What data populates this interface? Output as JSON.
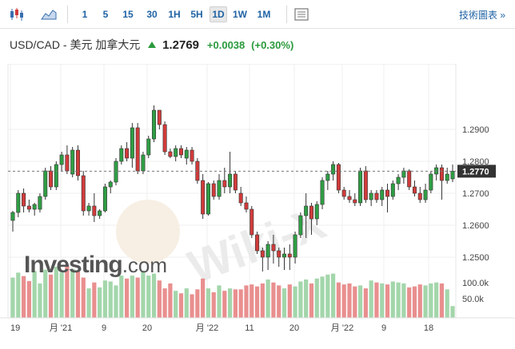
{
  "toolbar": {
    "buttons": [
      "1",
      "5",
      "15",
      "30",
      "1H",
      "5H",
      "1D",
      "1W",
      "1M"
    ],
    "active": "1D",
    "link": "技術圖表 »",
    "icons": [
      "candlestick-icon",
      "area-chart-icon",
      "settings-panel-icon"
    ]
  },
  "header": {
    "pair": "USD/CAD - 美元 加拿大元",
    "price": "1.2769",
    "change": "+0.0038",
    "change_pct": "(+0.30%)",
    "up_color": "#2a9a3c"
  },
  "watermark": {
    "brand": "Investing",
    "suffix": ".com",
    "overlay": "Wiki-X"
  },
  "colors": {
    "up": "#2f9e44",
    "down": "#d13b3b",
    "vol_up": "#a3d6ab",
    "vol_down": "#e98f8f",
    "grid": "#efefef",
    "current": "#333333"
  },
  "chart_data": {
    "type": "candlestick",
    "y_axis": {
      "ticks": [
        "1.2900",
        "1.2800",
        "1.2700",
        "1.2600",
        "1.2500"
      ],
      "min": 1.244,
      "max": 1.3105
    },
    "current_price_label": "1.2770",
    "x_axis": {
      "tick_labels": [
        "19",
        "月 '21",
        "9",
        "20",
        "月 '22",
        "11",
        "20",
        "月 '22",
        "9",
        "18"
      ]
    },
    "volume_axis": {
      "ticks": [
        "100.0k",
        "50.0k"
      ],
      "max": 130
    },
    "candles": [
      [
        1.2615,
        1.2645,
        1.258,
        1.264
      ],
      [
        1.264,
        1.271,
        1.2625,
        1.27
      ],
      [
        1.27,
        1.2715,
        1.264,
        1.266
      ],
      [
        1.266,
        1.268,
        1.264,
        1.265
      ],
      [
        1.265,
        1.267,
        1.263,
        1.2665
      ],
      [
        1.265,
        1.27,
        1.264,
        1.269
      ],
      [
        1.269,
        1.278,
        1.268,
        1.277
      ],
      [
        1.277,
        1.2785,
        1.271,
        1.272
      ],
      [
        1.272,
        1.28,
        1.271,
        1.279
      ],
      [
        1.279,
        1.283,
        1.277,
        1.282
      ],
      [
        1.282,
        1.285,
        1.276,
        1.277
      ],
      [
        1.276,
        1.2845,
        1.275,
        1.2835
      ],
      [
        1.2835,
        1.285,
        1.274,
        1.2755
      ],
      [
        1.2755,
        1.277,
        1.263,
        1.2645
      ],
      [
        1.2645,
        1.267,
        1.263,
        1.266
      ],
      [
        1.266,
        1.27,
        1.261,
        1.263
      ],
      [
        1.263,
        1.265,
        1.262,
        1.2645
      ],
      [
        1.2645,
        1.273,
        1.264,
        1.272
      ],
      [
        1.272,
        1.274,
        1.27,
        1.2735
      ],
      [
        1.2735,
        1.281,
        1.2725,
        1.28
      ],
      [
        1.28,
        1.285,
        1.279,
        1.284
      ],
      [
        1.284,
        1.286,
        1.28,
        1.281
      ],
      [
        1.281,
        1.292,
        1.278,
        1.2905
      ],
      [
        1.2905,
        1.292,
        1.276,
        1.277
      ],
      [
        1.277,
        1.283,
        1.276,
        1.282
      ],
      [
        1.282,
        1.288,
        1.281,
        1.287
      ],
      [
        1.287,
        1.2975,
        1.286,
        1.296
      ],
      [
        1.296,
        1.296,
        1.29,
        1.2915
      ],
      [
        1.2915,
        1.2925,
        1.282,
        1.283
      ],
      [
        1.283,
        1.284,
        1.281,
        1.2815
      ],
      [
        1.2815,
        1.285,
        1.28,
        1.284
      ],
      [
        1.284,
        1.285,
        1.281,
        1.282
      ],
      [
        1.281,
        1.2845,
        1.279,
        1.2835
      ],
      [
        1.2835,
        1.2845,
        1.279,
        1.28
      ],
      [
        1.28,
        1.281,
        1.273,
        1.274
      ],
      [
        1.274,
        1.276,
        1.262,
        1.2635
      ],
      [
        1.2635,
        1.2735,
        1.263,
        1.273
      ],
      [
        1.273,
        1.274,
        1.268,
        1.269
      ],
      [
        1.269,
        1.276,
        1.268,
        1.274
      ],
      [
        1.274,
        1.278,
        1.27,
        1.272
      ],
      [
        1.272,
        1.283,
        1.27,
        1.276
      ],
      [
        1.276,
        1.277,
        1.27,
        1.271
      ],
      [
        1.27,
        1.272,
        1.266,
        1.267
      ],
      [
        1.267,
        1.269,
        1.264,
        1.265
      ],
      [
        1.265,
        1.266,
        1.256,
        1.257
      ],
      [
        1.257,
        1.258,
        1.251,
        1.252
      ],
      [
        1.252,
        1.253,
        1.2455,
        1.25
      ],
      [
        1.25,
        1.255,
        1.246,
        1.254
      ],
      [
        1.254,
        1.257,
        1.248,
        1.252
      ],
      [
        1.252,
        1.253,
        1.247,
        1.25
      ],
      [
        1.25,
        1.253,
        1.246,
        1.251
      ],
      [
        1.251,
        1.254,
        1.246,
        1.25
      ],
      [
        1.25,
        1.258,
        1.248,
        1.257
      ],
      [
        1.257,
        1.264,
        1.256,
        1.263
      ],
      [
        1.263,
        1.27,
        1.256,
        1.266
      ],
      [
        1.266,
        1.267,
        1.257,
        1.262
      ],
      [
        1.262,
        1.2675,
        1.26,
        1.2665
      ],
      [
        1.2665,
        1.275,
        1.265,
        1.274
      ],
      [
        1.274,
        1.277,
        1.271,
        1.276
      ],
      [
        1.276,
        1.28,
        1.274,
        1.279
      ],
      [
        1.279,
        1.2795,
        1.27,
        1.271
      ],
      [
        1.271,
        1.272,
        1.268,
        1.269
      ],
      [
        1.269,
        1.271,
        1.267,
        1.268
      ],
      [
        1.268,
        1.27,
        1.266,
        1.267
      ],
      [
        1.267,
        1.278,
        1.266,
        1.277
      ],
      [
        1.277,
        1.2785,
        1.267,
        1.268
      ],
      [
        1.268,
        1.271,
        1.266,
        1.27
      ],
      [
        1.27,
        1.271,
        1.267,
        1.268
      ],
      [
        1.268,
        1.272,
        1.266,
        1.271
      ],
      [
        1.271,
        1.273,
        1.264,
        1.269
      ],
      [
        1.269,
        1.274,
        1.268,
        1.273
      ],
      [
        1.273,
        1.276,
        1.271,
        1.275
      ],
      [
        1.275,
        1.278,
        1.273,
        1.277
      ],
      [
        1.277,
        1.2775,
        1.271,
        1.272
      ],
      [
        1.272,
        1.274,
        1.269,
        1.27
      ],
      [
        1.27,
        1.272,
        1.267,
        1.268
      ],
      [
        1.268,
        1.273,
        1.267,
        1.271
      ],
      [
        1.271,
        1.277,
        1.27,
        1.276
      ],
      [
        1.276,
        1.279,
        1.274,
        1.278
      ],
      [
        1.278,
        1.279,
        1.268,
        1.274
      ],
      [
        1.274,
        1.278,
        1.273,
        1.276
      ],
      [
        1.2745,
        1.279,
        1.2735,
        1.2769
      ]
    ],
    "volumes": [
      82,
      92,
      85,
      75,
      95,
      70,
      98,
      88,
      104,
      92,
      105,
      100,
      96,
      82,
      60,
      72,
      62,
      76,
      74,
      66,
      86,
      80,
      86,
      82,
      96,
      86,
      90,
      76,
      60,
      70,
      55,
      50,
      60,
      48,
      58,
      80,
      60,
      52,
      66,
      55,
      60,
      58,
      58,
      66,
      68,
      64,
      70,
      78,
      72,
      66,
      60,
      68,
      64,
      74,
      78,
      70,
      80,
      84,
      88,
      90,
      72,
      68,
      70,
      64,
      66,
      60,
      76,
      72,
      70,
      68,
      74,
      72,
      70,
      62,
      64,
      68,
      66,
      70,
      72,
      70,
      58,
      24
    ]
  }
}
